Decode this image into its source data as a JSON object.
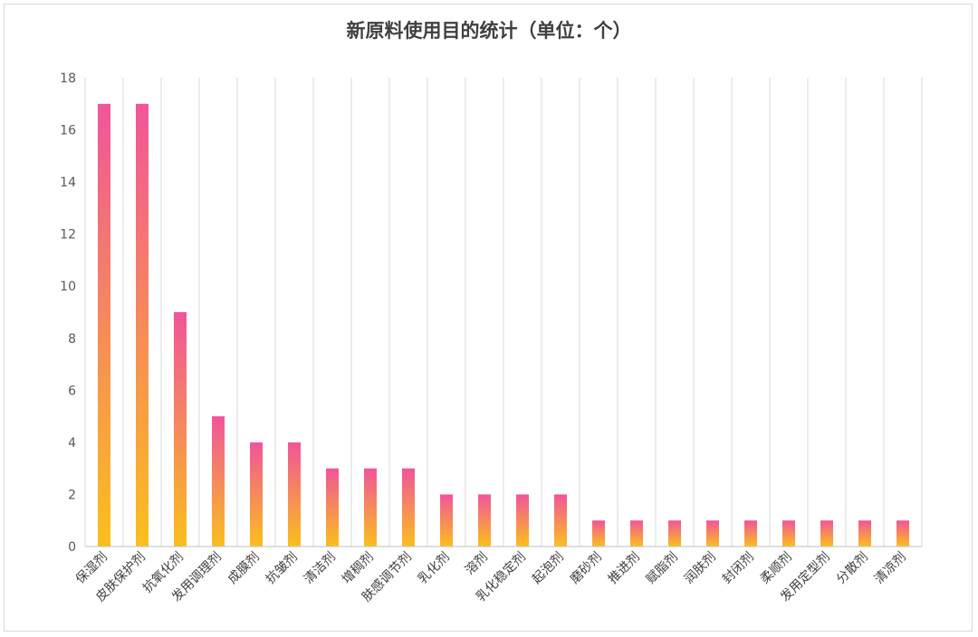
{
  "chart_data": {
    "type": "bar",
    "title": "新原料使用目的统计（单位：个）",
    "xlabel": "",
    "ylabel": "",
    "ylim": [
      0,
      18
    ],
    "yticks": [
      0,
      2,
      4,
      6,
      8,
      10,
      12,
      14,
      16,
      18
    ],
    "grid": "vertical",
    "legend": "none",
    "categories": [
      "保湿剂",
      "皮肤保护剂",
      "抗氧化剂",
      "发用调理剂",
      "成膜剂",
      "抗皱剂",
      "清洁剂",
      "增稠剂",
      "肤感调节剂",
      "乳化剂",
      "溶剂",
      "乳化稳定剂",
      "起泡剂",
      "磨砂剂",
      "推进剂",
      "赋脂剂",
      "润肤剂",
      "封闭剂",
      "柔顺剂",
      "发用定型剂",
      "分散剂",
      "清凉剂"
    ],
    "values": [
      17,
      17,
      9,
      5,
      4,
      4,
      3,
      3,
      3,
      2,
      2,
      2,
      2,
      1,
      1,
      1,
      1,
      1,
      1,
      1,
      1,
      1
    ],
    "colors": {
      "bar_top": "#f0559a",
      "bar_bottom": "#fbbf1c",
      "grid": "#d9d9d9",
      "axis": "#bfbfbf"
    }
  }
}
